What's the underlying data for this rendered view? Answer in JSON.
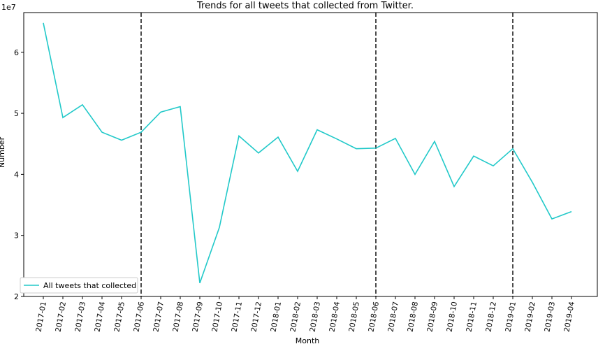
{
  "chart_data": {
    "type": "line",
    "title": "Trends for all tweets that collected from Twitter.",
    "xlabel": "Month",
    "ylabel": "Number",
    "y_multiplier_label": "1e7",
    "y_unit_multiplier": 10000000,
    "ylim": [
      20000000,
      66500000
    ],
    "yticks": [
      20000000,
      30000000,
      40000000,
      50000000,
      60000000
    ],
    "ytick_labels": [
      "2",
      "3",
      "4",
      "5",
      "6"
    ],
    "grid": false,
    "legend_position": "lower-left",
    "categories": [
      "2017-01",
      "2017-02",
      "2017-03",
      "2017-04",
      "2017-05",
      "2017-06",
      "2017-07",
      "2017-08",
      "2017-09",
      "2017-10",
      "2017-11",
      "2017-12",
      "2018-01",
      "2018-02",
      "2018-03",
      "2018-04",
      "2018-05",
      "2018-06",
      "2018-07",
      "2018-08",
      "2018-09",
      "2018-10",
      "2018-11",
      "2018-12",
      "2019-01",
      "2019-02",
      "2019-03",
      "2019-04"
    ],
    "series": [
      {
        "name": "All tweets that collected",
        "color": "#22c9c9",
        "values": [
          64800000,
          49300000,
          51400000,
          46900000,
          45600000,
          46900000,
          50200000,
          51100000,
          22200000,
          31300000,
          46300000,
          43500000,
          46100000,
          40500000,
          47300000,
          45800000,
          44200000,
          44300000,
          45900000,
          40000000,
          45400000,
          38000000,
          43000000,
          41400000,
          44200000,
          38700000,
          32700000,
          33900000
        ]
      }
    ],
    "vertical_lines": {
      "style": "dashed",
      "color": "#000000",
      "at": [
        "2017-06",
        "2018-06",
        "2019-01"
      ]
    }
  }
}
